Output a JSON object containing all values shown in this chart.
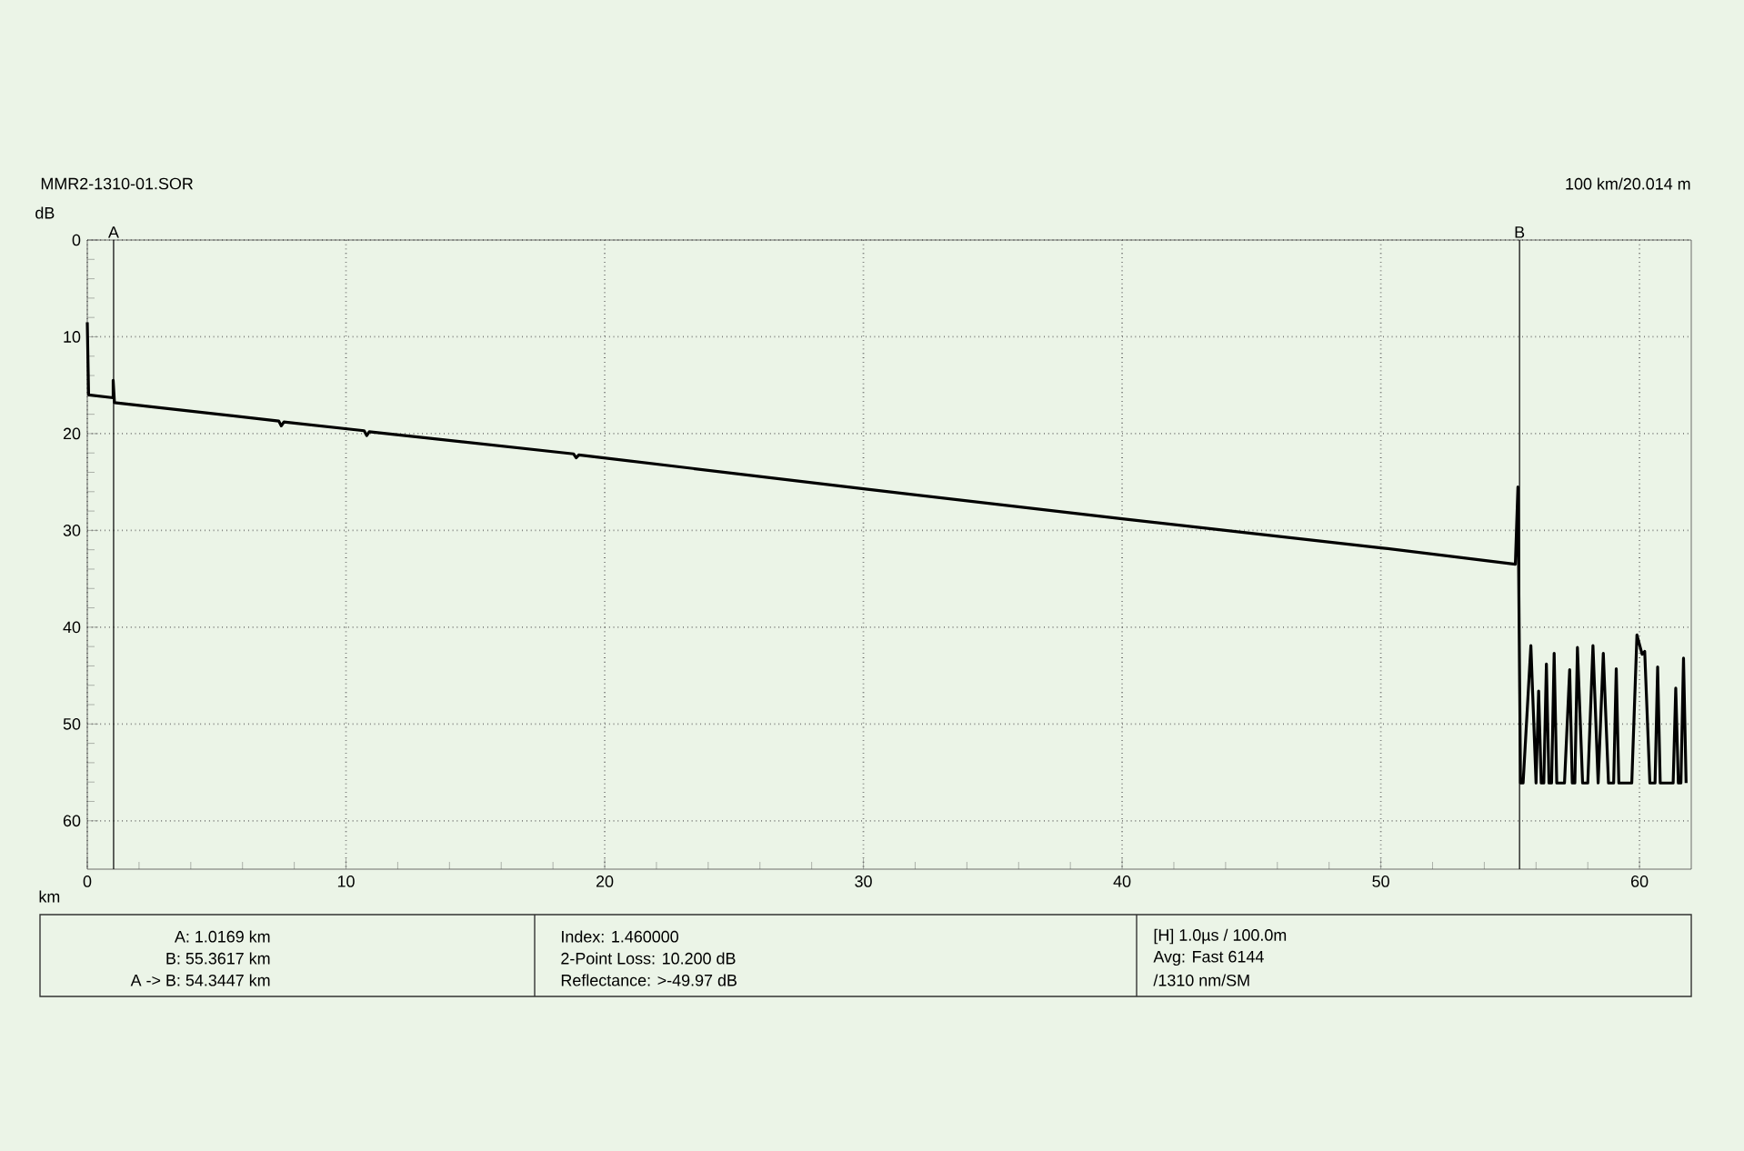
{
  "chart_data": {
    "type": "line",
    "title": "MMR2-1310-01.SOR",
    "xlabel": "km",
    "ylabel": "dB",
    "xlim": [
      0,
      62
    ],
    "xticks": [
      0,
      10,
      20,
      30,
      40,
      50,
      60
    ],
    "ylim": [
      65,
      0
    ],
    "yticks": [
      0,
      10,
      20,
      30,
      40,
      50,
      60
    ],
    "grid": true,
    "marker": "none",
    "line_style": "solid",
    "series": [
      {
        "color": "#000000",
        "x": [
          0,
          0.05,
          1.0,
          1.0,
          1.05,
          7.4,
          7.5,
          7.6,
          10.7,
          10.8,
          10.9,
          18.8,
          18.9,
          19.0,
          30,
          40,
          50,
          55.2,
          55.3,
          55.4,
          55.5,
          55.8,
          56.0,
          56.1,
          56.2,
          56.3,
          56.4,
          56.5,
          56.6,
          56.7,
          56.8,
          57.1,
          57.3,
          57.4,
          57.5,
          57.6,
          57.8,
          58.0,
          58.2,
          58.4,
          58.6,
          58.8,
          59.0,
          59.1,
          59.2,
          59.7,
          59.9,
          60.1,
          60.2,
          60.4,
          60.6,
          60.7,
          60.8,
          61.3,
          61.4,
          61.5,
          61.6,
          61.7,
          61.8
        ],
        "values": [
          8.5,
          16.0,
          16.3,
          14.5,
          16.8,
          18.7,
          19.2,
          18.8,
          19.7,
          20.2,
          19.8,
          22.1,
          22.5,
          22.2,
          25.7,
          28.8,
          31.8,
          33.5,
          25.5,
          56.1,
          56.1,
          41.9,
          56.1,
          46.6,
          56.1,
          56.1,
          43.8,
          56.1,
          56.1,
          42.7,
          56.1,
          56.1,
          44.4,
          56.1,
          56.1,
          42.1,
          56.1,
          56.1,
          41.9,
          56.1,
          42.7,
          56.1,
          56.1,
          44.3,
          56.1,
          56.1,
          40.8,
          42.8,
          42.5,
          56.1,
          56.1,
          44.1,
          56.1,
          56.1,
          46.3,
          56.1,
          56.1,
          43.2,
          56.1
        ]
      }
    ],
    "ref_lines": [
      {
        "axis": "x",
        "value": 1.0169,
        "label": "A",
        "color": "#000000"
      },
      {
        "axis": "x",
        "value": 55.3617,
        "label": "B",
        "color": "#000000"
      }
    ],
    "annotations": [
      "100 km/20.014 m",
      "A: 1.0169 km",
      "B: 55.3617 km",
      "A -> B: 54.3447 km",
      "Index: 1.460000",
      "2-Point Loss: 10.200 dB",
      "Reflectance: >-49.97 dB",
      "[H] 1.0µs / 100.0m",
      "Avg: Fast  6144",
      "/1310 nm/SM"
    ]
  }
}
